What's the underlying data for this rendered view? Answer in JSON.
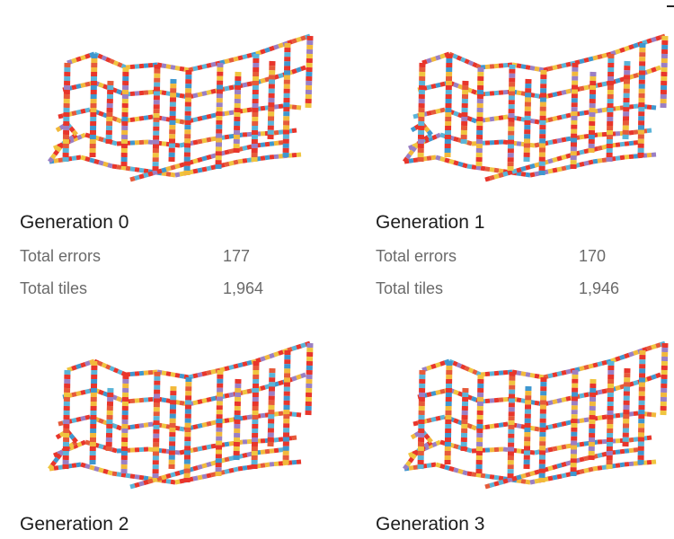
{
  "colors": {
    "tiles": [
      "#e8352b",
      "#e8352b",
      "#e8352b",
      "#f2b93b",
      "#f0c53f",
      "#5ab4d8",
      "#3f97cf",
      "#9a7fc4",
      "#e65a3a"
    ]
  },
  "panels": [
    {
      "title": "Generation 0",
      "stats": [
        {
          "label": "Total errors",
          "value": "177"
        },
        {
          "label": "Total tiles",
          "value": "1,964"
        }
      ]
    },
    {
      "title": "Generation 1",
      "stats": [
        {
          "label": "Total errors",
          "value": "170"
        },
        {
          "label": "Total tiles",
          "value": "1,946"
        }
      ]
    },
    {
      "title": "Generation 2",
      "stats": []
    },
    {
      "title": "Generation 3",
      "stats": []
    }
  ]
}
